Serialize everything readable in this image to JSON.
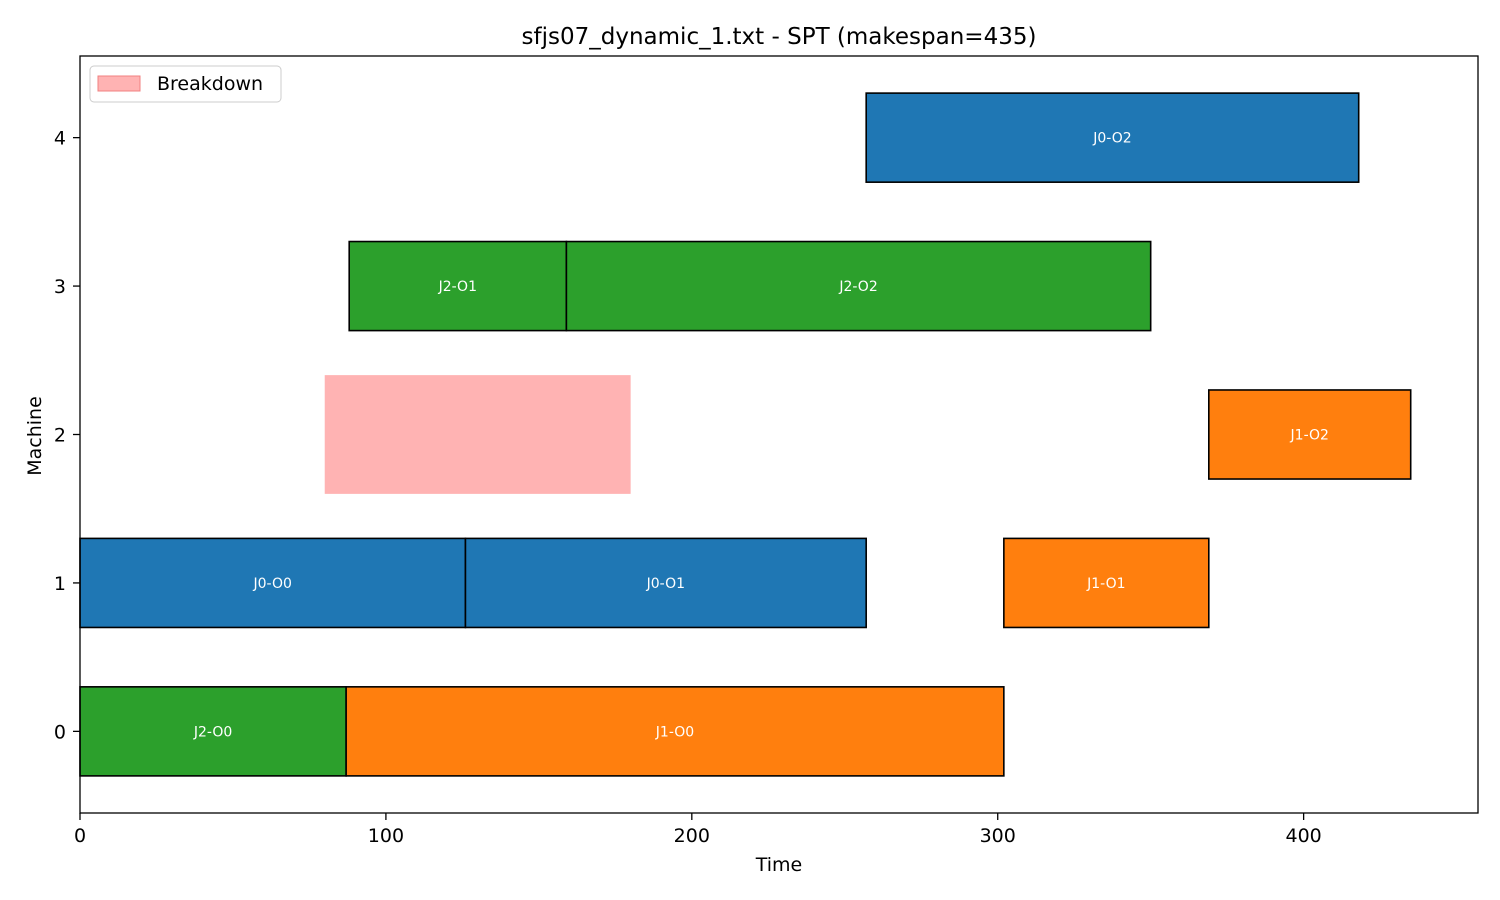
{
  "chart_data": {
    "type": "gantt",
    "title": "sfjs07_dynamic_1.txt - SPT (makespan=435)",
    "xlabel": "Time",
    "ylabel": "Machine",
    "xlim": [
      0,
      457
    ],
    "ylim": [
      -0.55,
      4.55
    ],
    "xticks": [
      0,
      100,
      200,
      300,
      400
    ],
    "yticks": [
      0,
      1,
      2,
      3,
      4
    ],
    "grid": false,
    "legend": {
      "placement": "top-left",
      "entries": [
        {
          "label": "Breakdown",
          "color": "#ffb3b3"
        }
      ]
    },
    "job_colors": {
      "J0": "#1f77b4",
      "J1": "#ff7f0e",
      "J2": "#2ca02c"
    },
    "operations": [
      {
        "label": "J2-O0",
        "job": "J2",
        "machine": 0,
        "start": 0,
        "end": 87
      },
      {
        "label": "J1-O0",
        "job": "J1",
        "machine": 0,
        "start": 87,
        "end": 302
      },
      {
        "label": "J0-O0",
        "job": "J0",
        "machine": 1,
        "start": 0,
        "end": 126
      },
      {
        "label": "J0-O1",
        "job": "J0",
        "machine": 1,
        "start": 126,
        "end": 257
      },
      {
        "label": "J1-O1",
        "job": "J1",
        "machine": 1,
        "start": 302,
        "end": 369
      },
      {
        "label": "J1-O2",
        "job": "J1",
        "machine": 2,
        "start": 369,
        "end": 435
      },
      {
        "label": "J2-O1",
        "job": "J2",
        "machine": 3,
        "start": 88,
        "end": 159
      },
      {
        "label": "J2-O2",
        "job": "J2",
        "machine": 3,
        "start": 159,
        "end": 350
      },
      {
        "label": "J0-O2",
        "job": "J0",
        "machine": 4,
        "start": 257,
        "end": 418
      }
    ],
    "breakdowns": [
      {
        "machine": 2,
        "start": 80,
        "end": 180
      }
    ]
  }
}
